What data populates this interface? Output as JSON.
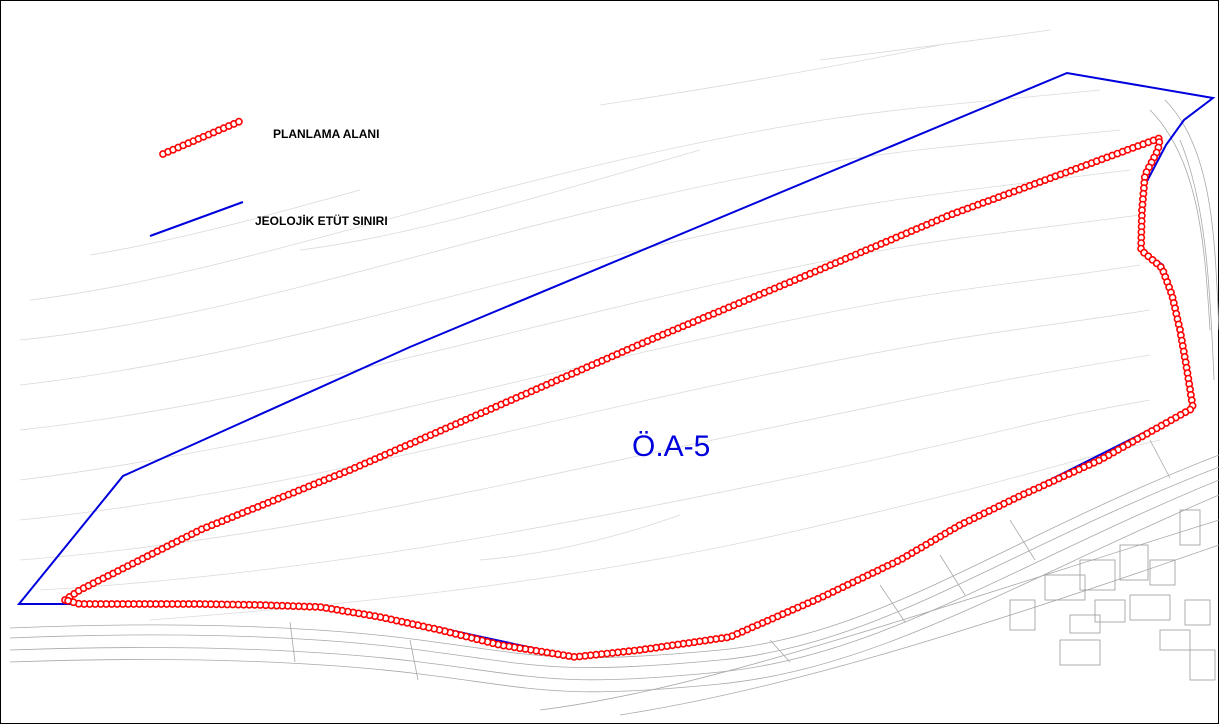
{
  "legend": {
    "planning_area_label": "PLANLAMA ALANI",
    "geological_boundary_label": "JEOLOJİK ETÜT SINIRI"
  },
  "zone": {
    "label": "Ö.A-5"
  },
  "colors": {
    "planning_area": "#ff0000",
    "geological_boundary": "#0000dd",
    "contour": "#d8d8d8",
    "road_lines": "#a8a8a8",
    "background": "#ffffff"
  },
  "symbols": {
    "planning_area": "red-circle-chain-line",
    "geological_boundary": "solid-blue-line"
  }
}
